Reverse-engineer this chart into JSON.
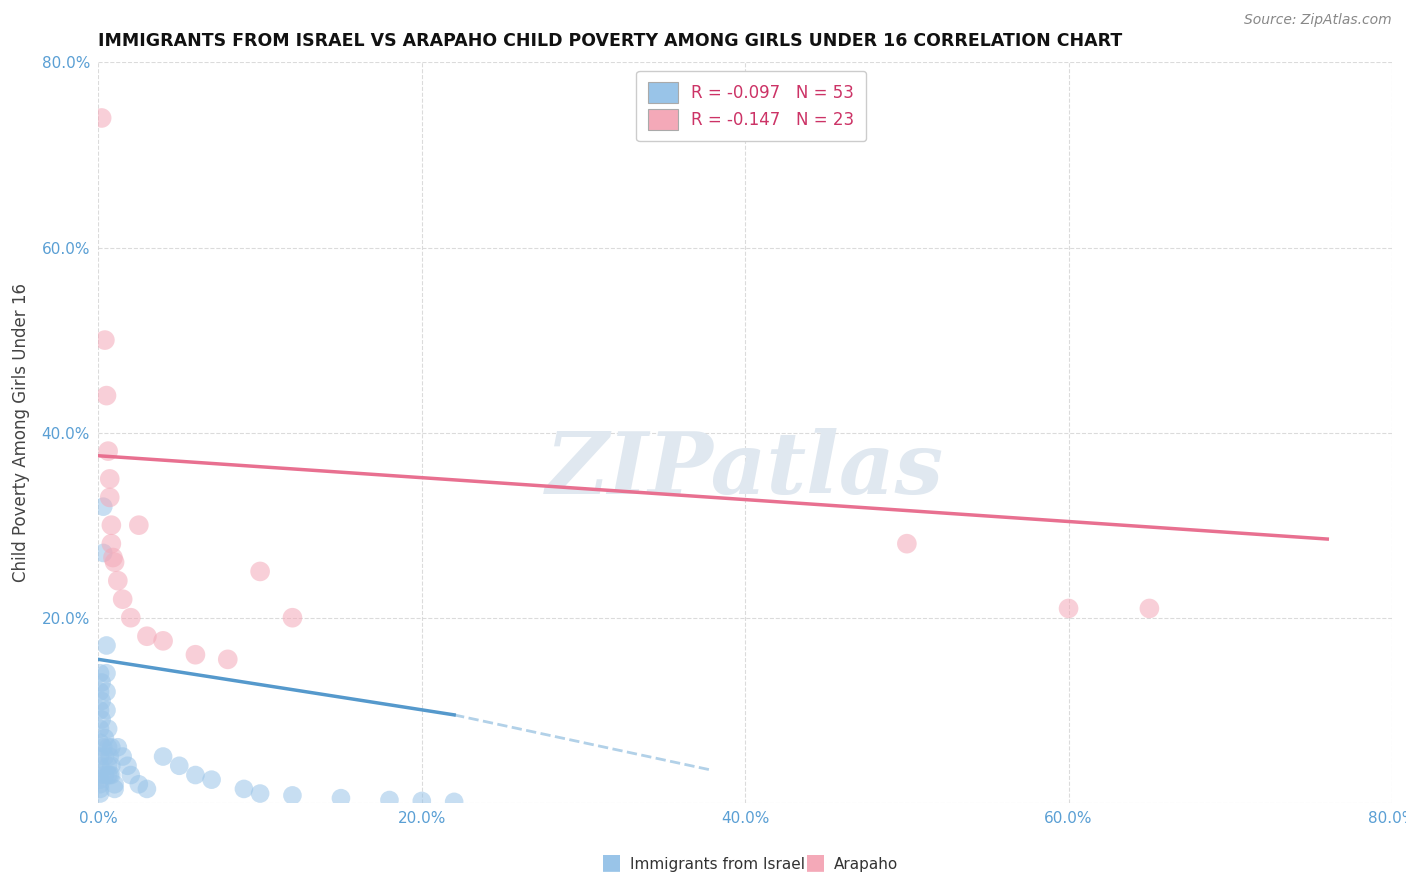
{
  "title": "IMMIGRANTS FROM ISRAEL VS ARAPAHO CHILD POVERTY AMONG GIRLS UNDER 16 CORRELATION CHART",
  "source": "Source: ZipAtlas.com",
  "ylabel": "Child Poverty Among Girls Under 16",
  "legend_label_blue": "Immigrants from Israel",
  "legend_label_pink": "Arapaho",
  "R_blue": -0.097,
  "N_blue": 53,
  "R_pink": -0.147,
  "N_pink": 23,
  "xlim": [
    0.0,
    0.8
  ],
  "ylim": [
    0.0,
    0.8
  ],
  "xtick_vals": [
    0.0,
    0.2,
    0.4,
    0.6,
    0.8
  ],
  "ytick_vals": [
    0.0,
    0.2,
    0.4,
    0.6,
    0.8
  ],
  "xticklabels": [
    "0.0%",
    "20.0%",
    "40.0%",
    "60.0%",
    "80.0%"
  ],
  "yticklabels": [
    "",
    "20.0%",
    "40.0%",
    "60.0%",
    "80.0%"
  ],
  "tick_color": "#5a9fd4",
  "color_blue": "#99c4e8",
  "color_pink": "#f4a9b8",
  "color_trendline_blue": "#5599cc",
  "color_trendline_pink": "#e87090",
  "background": "#ffffff",
  "watermark_text": "ZIPatlas",
  "blue_points_x": [
    0.001,
    0.001,
    0.001,
    0.001,
    0.001,
    0.001,
    0.001,
    0.001,
    0.001,
    0.001,
    0.001,
    0.001,
    0.002,
    0.002,
    0.002,
    0.003,
    0.003,
    0.003,
    0.004,
    0.004,
    0.004,
    0.005,
    0.005,
    0.005,
    0.005,
    0.006,
    0.006,
    0.006,
    0.006,
    0.007,
    0.007,
    0.008,
    0.008,
    0.008,
    0.01,
    0.01,
    0.012,
    0.015,
    0.018,
    0.02,
    0.025,
    0.03,
    0.04,
    0.05,
    0.06,
    0.07,
    0.09,
    0.1,
    0.12,
    0.15,
    0.18,
    0.2,
    0.22
  ],
  "blue_points_y": [
    0.14,
    0.12,
    0.1,
    0.08,
    0.065,
    0.05,
    0.04,
    0.03,
    0.025,
    0.02,
    0.015,
    0.01,
    0.13,
    0.11,
    0.09,
    0.32,
    0.27,
    0.06,
    0.07,
    0.05,
    0.03,
    0.17,
    0.14,
    0.12,
    0.1,
    0.08,
    0.06,
    0.04,
    0.03,
    0.05,
    0.03,
    0.06,
    0.04,
    0.03,
    0.02,
    0.015,
    0.06,
    0.05,
    0.04,
    0.03,
    0.02,
    0.015,
    0.05,
    0.04,
    0.03,
    0.025,
    0.015,
    0.01,
    0.008,
    0.005,
    0.003,
    0.002,
    0.001
  ],
  "pink_points_x": [
    0.002,
    0.004,
    0.005,
    0.006,
    0.007,
    0.007,
    0.008,
    0.008,
    0.009,
    0.01,
    0.012,
    0.015,
    0.02,
    0.025,
    0.03,
    0.04,
    0.06,
    0.08,
    0.1,
    0.12,
    0.5,
    0.6,
    0.65
  ],
  "pink_points_y": [
    0.74,
    0.5,
    0.44,
    0.38,
    0.35,
    0.33,
    0.3,
    0.28,
    0.265,
    0.26,
    0.24,
    0.22,
    0.2,
    0.3,
    0.18,
    0.175,
    0.16,
    0.155,
    0.25,
    0.2,
    0.28,
    0.21,
    0.21
  ],
  "trendline_blue_x0": 0.0,
  "trendline_blue_x1": 0.22,
  "trendline_blue_y0": 0.155,
  "trendline_blue_y1": 0.095,
  "trendline_blue_dash_x0": 0.22,
  "trendline_blue_dash_x1": 0.38,
  "trendline_blue_dash_y0": 0.095,
  "trendline_blue_dash_y1": 0.035,
  "trendline_pink_x0": 0.0,
  "trendline_pink_x1": 0.76,
  "trendline_pink_y0": 0.375,
  "trendline_pink_y1": 0.285
}
